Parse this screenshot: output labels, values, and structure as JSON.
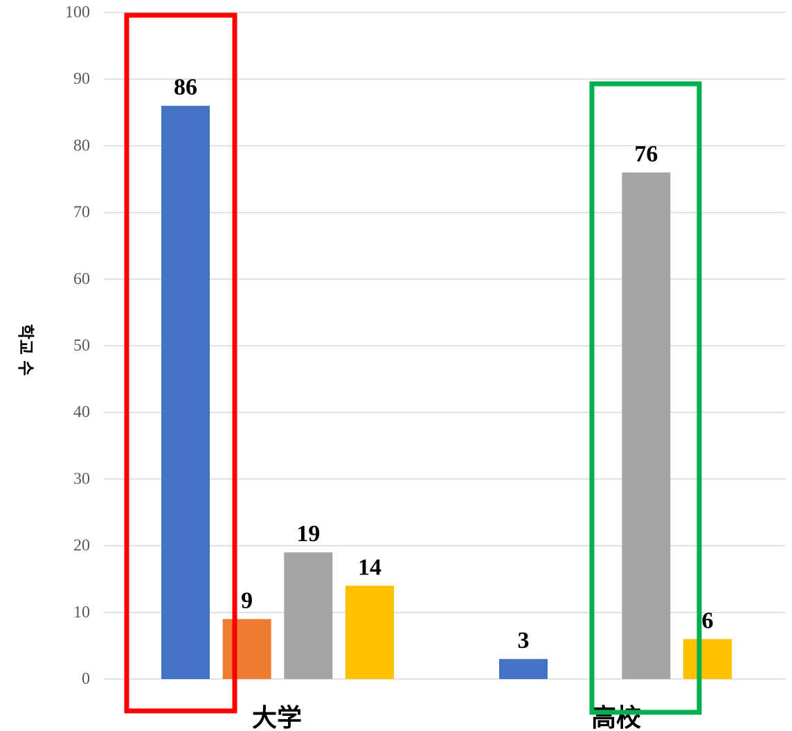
{
  "chart_data": {
    "type": "bar",
    "categories": [
      "大学",
      "高校"
    ],
    "series": [
      {
        "values": [
          86,
          null
        ],
        "color": "#4472C4"
      },
      {
        "values": [
          9,
          null
        ],
        "color": "#ED7D31"
      },
      {
        "values": [
          19,
          76
        ],
        "color": "#A5A5A5"
      },
      {
        "values": [
          14,
          6
        ],
        "color": "#FFC000"
      },
      {
        "values": [
          null,
          3
        ],
        "color": "#4472C4"
      }
    ],
    "ylabel": "학교 수",
    "ylim": [
      0,
      100
    ],
    "yticks": [
      0,
      10,
      20,
      30,
      40,
      50,
      60,
      70,
      80,
      90,
      100
    ],
    "grid": true,
    "gridline_color": "#D9D9D9",
    "highlight_boxes": [
      {
        "category": "大学",
        "color": "#FF0000"
      },
      {
        "category": "高校",
        "color": "#00B050"
      }
    ]
  }
}
